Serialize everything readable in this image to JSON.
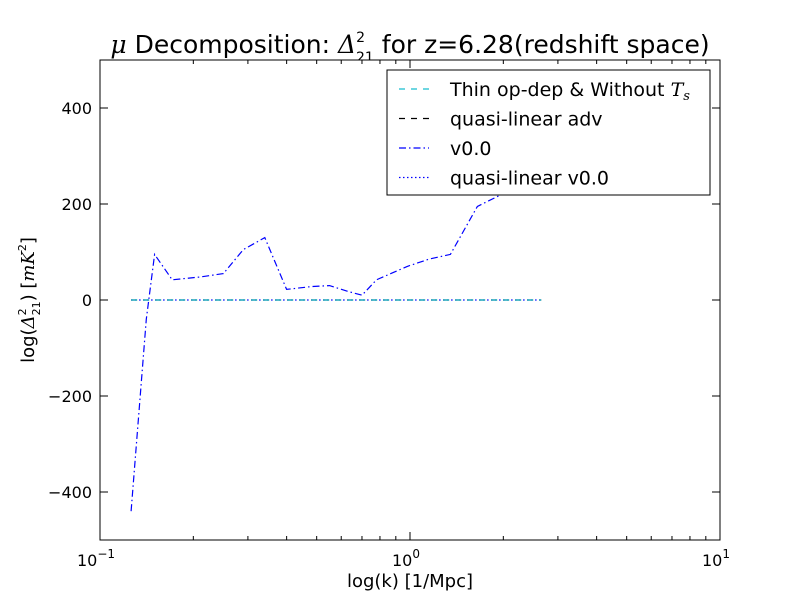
{
  "chart_data": {
    "type": "line",
    "title": {
      "mu": "μ",
      "text": "Decomposition: ",
      "delta": "Δ",
      "sup": "2",
      "sub": "21",
      "suffix": " for z=6.28(redshift space)"
    },
    "xlabel": "log(k) [1/Mpc]",
    "ylabel": {
      "prefix": "log(",
      "delta": "Δ",
      "sup": "2",
      "sub": "21",
      "mid": ") [",
      "unit": "mK",
      "unit_sup": "2",
      "suffix": "]"
    },
    "xscale": "log",
    "xlim": [
      0.1,
      10
    ],
    "ylim": [
      -500,
      500
    ],
    "x_ticks": [
      {
        "value": 0.1,
        "base": "10",
        "exp": "−1"
      },
      {
        "value": 1,
        "base": "10",
        "exp": "0"
      },
      {
        "value": 10,
        "base": "10",
        "exp": "1"
      }
    ],
    "y_ticks": [
      {
        "value": -400,
        "label": "−400"
      },
      {
        "value": -200,
        "label": "−200"
      },
      {
        "value": 0,
        "label": "0"
      },
      {
        "value": 200,
        "label": "200"
      },
      {
        "value": 400,
        "label": "400"
      }
    ],
    "legend_position": "top-right",
    "series": [
      {
        "name": "Thin op-dep & Without ",
        "name_math": "Ts",
        "style": "dashed",
        "color": "#17becf",
        "x": [
          0.126,
          2.65
        ],
        "y": [
          0,
          0
        ]
      },
      {
        "name": "quasi-linear adv",
        "style": "dashed",
        "color": "#000000",
        "x": [
          0.126,
          2.65
        ],
        "y": [
          0,
          0
        ]
      },
      {
        "name": "v0.0",
        "style": "dashdot",
        "color": "#0000ff",
        "x": [
          0.126,
          0.141,
          0.15,
          0.171,
          0.21,
          0.25,
          0.29,
          0.34,
          0.4,
          0.48,
          0.55,
          0.63,
          0.7,
          0.78,
          0.98,
          1.15,
          1.35,
          1.65,
          2.05
        ],
        "y": [
          -440,
          -40,
          95,
          42,
          48,
          55,
          105,
          130,
          22,
          28,
          30,
          18,
          10,
          42,
          70,
          85,
          95,
          195,
          225
        ]
      },
      {
        "name": "quasi-linear v0.0",
        "style": "dotted",
        "color": "#0000ff",
        "x": [
          0.126,
          2.65
        ],
        "y": [
          0,
          0
        ]
      }
    ]
  }
}
